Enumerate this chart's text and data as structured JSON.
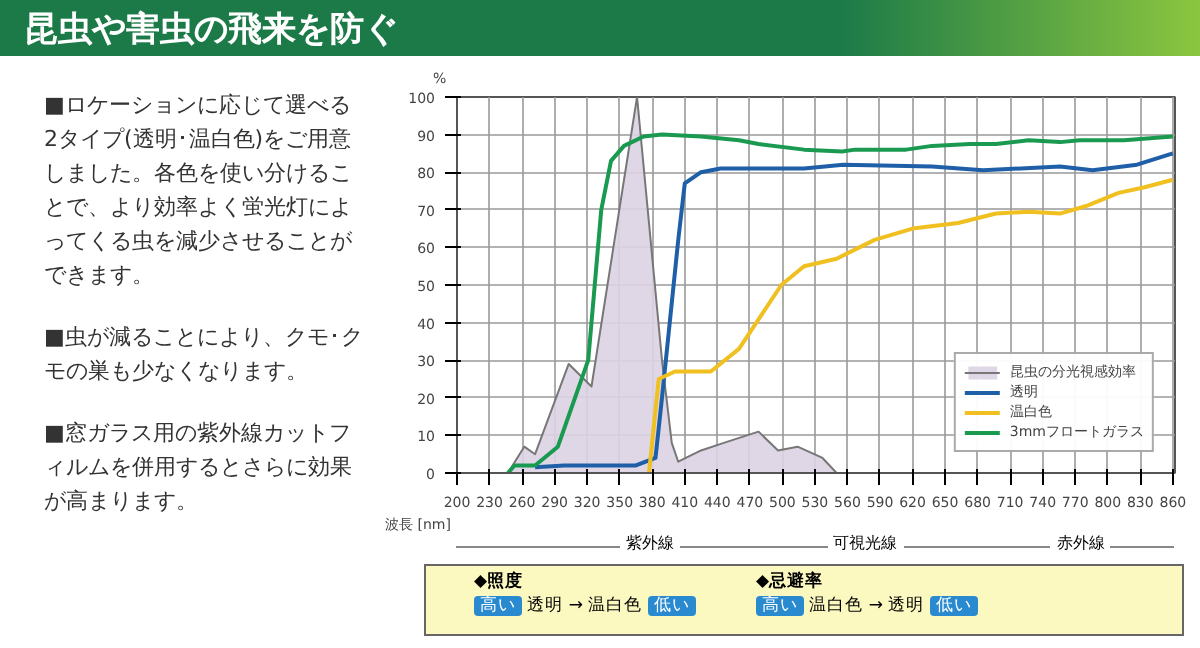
{
  "chart_data": {
    "type": "line",
    "title": "昆虫や害虫の飛来を防ぐ",
    "xlabel": "波長 [nm]",
    "ylabel": "%",
    "annotations": [
      "■ロケーションに応じて選べる2タイプ(透明･温白色)をご用意しました。各色を使い分けることで、より効率よく蛍光灯によってくる虫を減少させることができます。",
      "■虫が減ることにより、クモ･クモの巣も少なくなります。",
      "■窓ガラス用の紫外線カットフィルムを併用するとさらに効果が高まります。",
      "◆照度",
      "高い",
      "透明 → 温白色",
      "低い",
      "◆忌避率",
      "高い",
      "温白色 → 透明",
      "低い",
      "紫外線",
      "可視光線",
      "赤外線"
    ],
    "xlim": [
      200,
      862
    ],
    "ylim": [
      0,
      100
    ],
    "xticks": [
      200,
      230,
      260,
      290,
      320,
      350,
      380,
      410,
      440,
      470,
      500,
      530,
      560,
      590,
      620,
      650,
      680,
      710,
      740,
      770,
      800,
      830,
      860
    ],
    "yticks": [
      0,
      10,
      20,
      30,
      40,
      50,
      60,
      70,
      80,
      90,
      100
    ],
    "grid": true,
    "legend": "bottom right",
    "series": [
      {
        "name": "昆虫の分光視感効率",
        "type": "area",
        "color": "#dcd3e3",
        "x": [
          247,
          262,
          272,
          303,
          324,
          366,
          389,
          398,
          404,
          425,
          446,
          478,
          496,
          514,
          537,
          550
        ],
        "values": [
          0,
          7,
          5,
          29,
          23,
          100,
          30,
          8,
          3,
          6,
          8,
          11,
          6,
          7,
          4,
          0
        ]
      },
      {
        "name": "透明",
        "color": "#1f5fa8",
        "x": [
          272,
          299,
          365,
          383,
          389,
          404,
          410,
          425,
          443,
          490,
          520,
          556,
          638,
          685,
          756,
          786,
          827,
          860
        ],
        "values": [
          1.5,
          2,
          2,
          4,
          20,
          62,
          77,
          80,
          81,
          81,
          81,
          82,
          81.5,
          80.5,
          81.5,
          80.5,
          82,
          85
        ]
      },
      {
        "name": "温白色",
        "color": "#f0c020",
        "x": [
          377,
          386,
          401,
          434,
          460,
          499,
          520,
          550,
          585,
          620,
          662,
          697,
          727,
          756,
          780,
          810,
          834,
          860
        ],
        "values": [
          0,
          25,
          27,
          27,
          33,
          50,
          55,
          57,
          62,
          65,
          66.5,
          69,
          69.5,
          69,
          71,
          74.5,
          76,
          78
        ]
      },
      {
        "name": "3mmフロートガラス",
        "color": "#1a9a50",
        "x": [
          247,
          253,
          272,
          293,
          321,
          333,
          342,
          354,
          372,
          389,
          425,
          460,
          478,
          520,
          555,
          567,
          614,
          638,
          673,
          697,
          727,
          756,
          774,
          815,
          860
        ],
        "values": [
          0,
          2,
          2,
          7,
          30,
          70,
          83,
          87,
          89.5,
          90,
          89.5,
          88.5,
          87.5,
          86,
          85.5,
          86,
          86,
          87,
          87.5,
          87.5,
          88.5,
          88,
          88.5,
          88.5,
          89.5
        ]
      }
    ]
  }
}
